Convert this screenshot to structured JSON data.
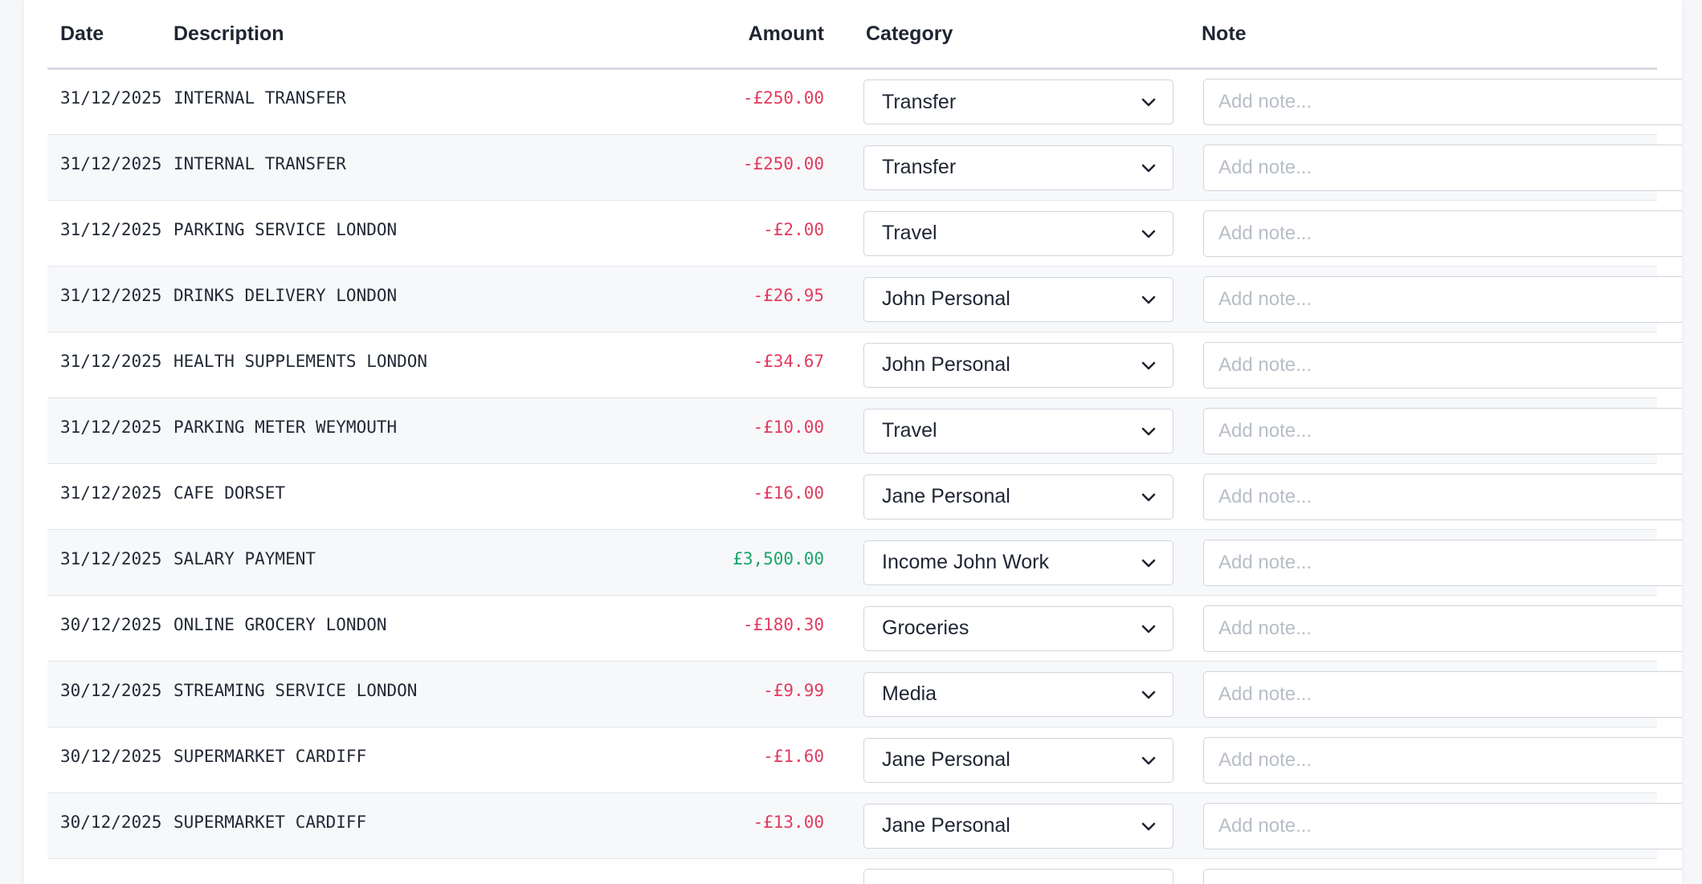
{
  "table": {
    "headers": {
      "date": "Date",
      "description": "Description",
      "amount": "Amount",
      "category": "Category",
      "note": "Note"
    },
    "note_placeholder": "Add note...",
    "rows": [
      {
        "date": "31/12/2025",
        "description": "INTERNAL TRANSFER",
        "amount": "-£250.00",
        "category": "Transfer",
        "sign": "neg"
      },
      {
        "date": "31/12/2025",
        "description": "INTERNAL TRANSFER",
        "amount": "-£250.00",
        "category": "Transfer",
        "sign": "neg"
      },
      {
        "date": "31/12/2025",
        "description": "PARKING SERVICE LONDON",
        "amount": "-£2.00",
        "category": "Travel",
        "sign": "neg"
      },
      {
        "date": "31/12/2025",
        "description": "DRINKS DELIVERY LONDON",
        "amount": "-£26.95",
        "category": "John Personal",
        "sign": "neg"
      },
      {
        "date": "31/12/2025",
        "description": "HEALTH SUPPLEMENTS LONDON",
        "amount": "-£34.67",
        "category": "John Personal",
        "sign": "neg"
      },
      {
        "date": "31/12/2025",
        "description": "PARKING METER WEYMOUTH",
        "amount": "-£10.00",
        "category": "Travel",
        "sign": "neg"
      },
      {
        "date": "31/12/2025",
        "description": "CAFE DORSET",
        "amount": "-£16.00",
        "category": "Jane Personal",
        "sign": "neg"
      },
      {
        "date": "31/12/2025",
        "description": "SALARY PAYMENT",
        "amount": "£3,500.00",
        "category": "Income John Work",
        "sign": "pos"
      },
      {
        "date": "30/12/2025",
        "description": "ONLINE GROCERY LONDON",
        "amount": "-£180.30",
        "category": "Groceries",
        "sign": "neg"
      },
      {
        "date": "30/12/2025",
        "description": "STREAMING SERVICE LONDON",
        "amount": "-£9.99",
        "category": "Media",
        "sign": "neg"
      },
      {
        "date": "30/12/2025",
        "description": "SUPERMARKET CARDIFF",
        "amount": "-£1.60",
        "category": "Jane Personal",
        "sign": "neg"
      },
      {
        "date": "30/12/2025",
        "description": "SUPERMARKET CARDIFF",
        "amount": "-£13.00",
        "category": "Jane Personal",
        "sign": "neg"
      }
    ]
  },
  "colors": {
    "negative": "#e23b5e",
    "positive": "#1aa66a"
  },
  "icons": {
    "dropdown": "chevron-down-icon"
  }
}
